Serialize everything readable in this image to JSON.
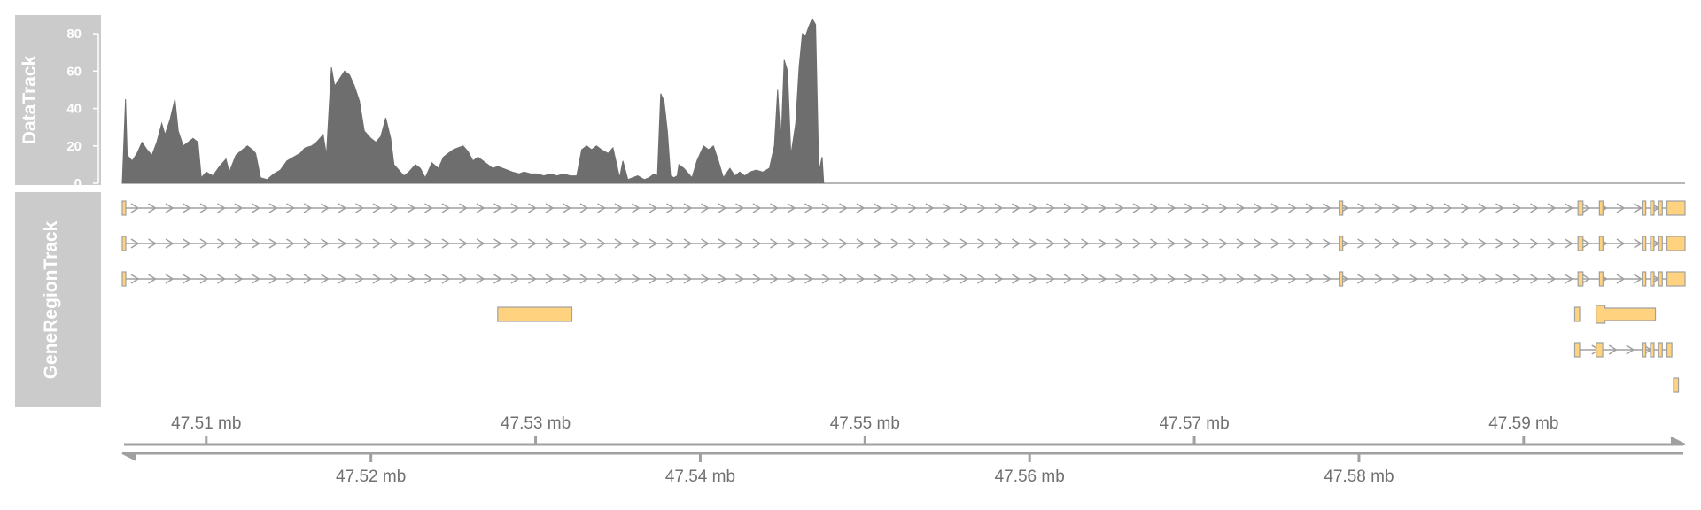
{
  "chart_data": {
    "type": "area",
    "panels": {
      "data_track": {
        "title": "DataTrack"
      },
      "gene_track": {
        "title": "GeneRegionTrack"
      }
    },
    "x_unit": "mb",
    "xlim": [
      47.5049,
      47.5998
    ],
    "data_track": {
      "ylim": [
        0,
        90
      ],
      "y_ticks": [
        0,
        20,
        40,
        60,
        80
      ],
      "fill_color": "#6e6e6e",
      "profile": [
        [
          47.5049,
          0
        ],
        [
          47.5051,
          45
        ],
        [
          47.5052,
          15
        ],
        [
          47.5055,
          12
        ],
        [
          47.5058,
          16
        ],
        [
          47.5061,
          22
        ],
        [
          47.5064,
          18
        ],
        [
          47.5067,
          15
        ],
        [
          47.507,
          22
        ],
        [
          47.5073,
          32
        ],
        [
          47.5075,
          26
        ],
        [
          47.5078,
          34
        ],
        [
          47.5081,
          45
        ],
        [
          47.5083,
          28
        ],
        [
          47.5086,
          20
        ],
        [
          47.5089,
          22
        ],
        [
          47.5092,
          24
        ],
        [
          47.5095,
          22
        ],
        [
          47.5097,
          3
        ],
        [
          47.51,
          6
        ],
        [
          47.5104,
          4
        ],
        [
          47.5108,
          9
        ],
        [
          47.5112,
          13
        ],
        [
          47.5114,
          6
        ],
        [
          47.5118,
          15
        ],
        [
          47.5122,
          18
        ],
        [
          47.5125,
          20
        ],
        [
          47.5128,
          18
        ],
        [
          47.513,
          16
        ],
        [
          47.5133,
          3
        ],
        [
          47.5137,
          2
        ],
        [
          47.5141,
          5
        ],
        [
          47.5145,
          7
        ],
        [
          47.5149,
          12
        ],
        [
          47.5153,
          14
        ],
        [
          47.5157,
          16
        ],
        [
          47.516,
          19
        ],
        [
          47.5164,
          20
        ],
        [
          47.5167,
          22
        ],
        [
          47.5171,
          26
        ],
        [
          47.5173,
          15
        ],
        [
          47.5176,
          62
        ],
        [
          47.5178,
          52
        ],
        [
          47.5181,
          56
        ],
        [
          47.5184,
          60
        ],
        [
          47.5187,
          58
        ],
        [
          47.519,
          52
        ],
        [
          47.5193,
          44
        ],
        [
          47.5196,
          28
        ],
        [
          47.52,
          24
        ],
        [
          47.5203,
          22
        ],
        [
          47.5206,
          25
        ],
        [
          47.5209,
          35
        ],
        [
          47.5212,
          24
        ],
        [
          47.5214,
          10
        ],
        [
          47.5217,
          7
        ],
        [
          47.522,
          4
        ],
        [
          47.5223,
          6
        ],
        [
          47.5227,
          10
        ],
        [
          47.523,
          8
        ],
        [
          47.5233,
          3
        ],
        [
          47.5237,
          11
        ],
        [
          47.5241,
          8
        ],
        [
          47.5244,
          14
        ],
        [
          47.5247,
          16
        ],
        [
          47.525,
          18
        ],
        [
          47.5253,
          19
        ],
        [
          47.5256,
          20
        ],
        [
          47.5259,
          17
        ],
        [
          47.5262,
          12
        ],
        [
          47.5265,
          14
        ],
        [
          47.5268,
          12
        ],
        [
          47.5271,
          10
        ],
        [
          47.5274,
          8
        ],
        [
          47.5277,
          9
        ],
        [
          47.528,
          8
        ],
        [
          47.5283,
          7
        ],
        [
          47.5286,
          6
        ],
        [
          47.529,
          5
        ],
        [
          47.5293,
          6
        ],
        [
          47.5297,
          5
        ],
        [
          47.5301,
          5
        ],
        [
          47.5305,
          4
        ],
        [
          47.5309,
          5
        ],
        [
          47.5313,
          4
        ],
        [
          47.5317,
          5
        ],
        [
          47.5321,
          4
        ],
        [
          47.5325,
          4
        ],
        [
          47.5328,
          18
        ],
        [
          47.5331,
          20
        ],
        [
          47.5334,
          18
        ],
        [
          47.5337,
          20
        ],
        [
          47.534,
          18
        ],
        [
          47.5344,
          16
        ],
        [
          47.5347,
          19
        ],
        [
          47.5351,
          3
        ],
        [
          47.5353,
          12
        ],
        [
          47.5356,
          2
        ],
        [
          47.5359,
          3
        ],
        [
          47.5362,
          4
        ],
        [
          47.5366,
          2
        ],
        [
          47.5369,
          3
        ],
        [
          47.5372,
          5
        ],
        [
          47.5374,
          4
        ],
        [
          47.5376,
          48
        ],
        [
          47.5378,
          44
        ],
        [
          47.538,
          28
        ],
        [
          47.5382,
          4
        ],
        [
          47.5384,
          3
        ],
        [
          47.5386,
          4
        ],
        [
          47.5387,
          10
        ],
        [
          47.539,
          8
        ],
        [
          47.5395,
          3
        ],
        [
          47.5398,
          12
        ],
        [
          47.5402,
          20
        ],
        [
          47.5405,
          18
        ],
        [
          47.5408,
          20
        ],
        [
          47.5411,
          12
        ],
        [
          47.5414,
          3
        ],
        [
          47.5418,
          8
        ],
        [
          47.5421,
          4
        ],
        [
          47.5424,
          6
        ],
        [
          47.5427,
          4
        ],
        [
          47.543,
          6
        ],
        [
          47.5434,
          7
        ],
        [
          47.5438,
          6
        ],
        [
          47.5442,
          8
        ],
        [
          47.5445,
          20
        ],
        [
          47.5447,
          50
        ],
        [
          47.5449,
          20
        ],
        [
          47.5451,
          66
        ],
        [
          47.5453,
          60
        ],
        [
          47.5455,
          15
        ],
        [
          47.5458,
          32
        ],
        [
          47.546,
          62
        ],
        [
          47.5462,
          80
        ],
        [
          47.5464,
          79
        ],
        [
          47.5466,
          84
        ],
        [
          47.5468,
          88
        ],
        [
          47.547,
          85
        ],
        [
          47.5472,
          6
        ],
        [
          47.5474,
          14
        ],
        [
          47.5475,
          0
        ],
        [
          47.5476,
          0
        ]
      ]
    },
    "gene_track": {
      "fill_color": "#ffd27f",
      "stroke_color": "#a0a0a0",
      "line_color": "#a0a0a0",
      "transcripts": [
        {
          "start": 47.5049,
          "end": 47.5998,
          "arrow": 47.5049,
          "exons": [
            [
              47.5049,
              47.5051
            ],
            [
              47.5788,
              47.579
            ],
            [
              47.5933,
              47.5936
            ],
            [
              47.5946,
              47.5948
            ],
            [
              47.5972,
              47.5974
            ],
            [
              47.5977,
              47.5979
            ],
            [
              47.5982,
              47.5984
            ],
            [
              47.5987,
              47.5998
            ]
          ]
        },
        {
          "start": 47.5049,
          "end": 47.5998,
          "arrow": 47.5049,
          "exons": [
            [
              47.5049,
              47.5051
            ],
            [
              47.5788,
              47.579
            ],
            [
              47.5933,
              47.5936
            ],
            [
              47.5946,
              47.5948
            ],
            [
              47.5972,
              47.5974
            ],
            [
              47.5977,
              47.5979
            ],
            [
              47.5982,
              47.5984
            ],
            [
              47.5987,
              47.5998
            ]
          ]
        },
        {
          "start": 47.5049,
          "end": 47.5998,
          "arrow": 47.5049,
          "exons": [
            [
              47.5049,
              47.5051
            ],
            [
              47.5788,
              47.579
            ],
            [
              47.5933,
              47.5936
            ],
            [
              47.5946,
              47.5948
            ],
            [
              47.5972,
              47.5974
            ],
            [
              47.5977,
              47.5979
            ],
            [
              47.5982,
              47.5984
            ],
            [
              47.5987,
              47.5998
            ]
          ]
        },
        {
          "start": 47.5277,
          "end": 47.5322,
          "exons": [
            [
              47.5277,
              47.5322
            ]
          ]
        },
        {
          "start": 47.5931,
          "end": 47.5998,
          "exons": [
            [
              47.5931,
              47.5934
            ]
          ],
          "utr": [
            [
              47.5944,
              47.598
            ]
          ]
        },
        {
          "start": 47.5931,
          "end": 47.599,
          "arrow": 47.5936,
          "exons": [
            [
              47.5931,
              47.5934
            ],
            [
              47.5944,
              47.5948
            ],
            [
              47.5972,
              47.5974
            ],
            [
              47.5977,
              47.5979
            ],
            [
              47.5982,
              47.5984
            ],
            [
              47.5987,
              47.599
            ]
          ]
        },
        {
          "start": 47.5991,
          "end": 47.5994,
          "exons": [
            [
              47.5991,
              47.5994
            ]
          ]
        }
      ]
    },
    "axis": {
      "ticks_top": [
        47.51,
        47.53,
        47.55,
        47.57,
        47.59
      ],
      "labels_top": [
        "47.51 mb",
        "47.53 mb",
        "47.55 mb",
        "47.57 mb",
        "47.59 mb"
      ],
      "ticks_bottom": [
        47.52,
        47.54,
        47.56,
        47.58
      ],
      "labels_bottom": [
        "47.52 mb",
        "47.54 mb",
        "47.56 mb",
        "47.58 mb"
      ],
      "color": "#a0a0a0"
    }
  }
}
